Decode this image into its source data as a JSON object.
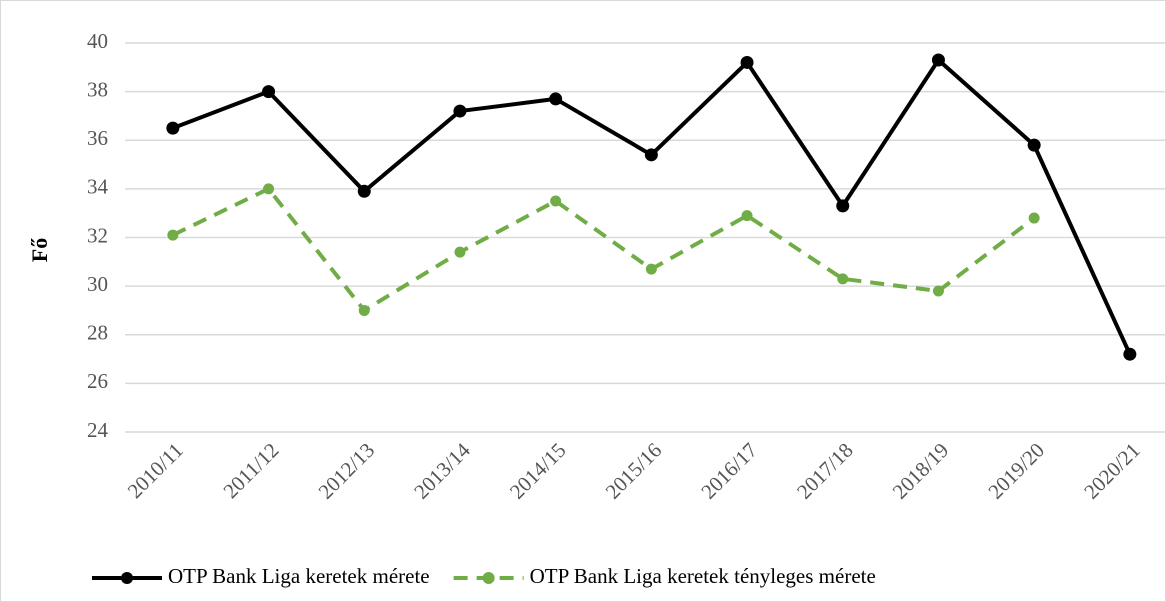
{
  "chart_data": {
    "type": "line",
    "y_label": "Fő",
    "categories": [
      "2010/11",
      "2011/12",
      "2012/13",
      "2013/14",
      "2014/15",
      "2015/16",
      "2016/17",
      "2017/18",
      "2018/19",
      "2019/20",
      "2020/21"
    ],
    "series": [
      {
        "name": "OTP Bank Liga keretek mérete",
        "color": "#000000",
        "dashed": false,
        "values": [
          36.5,
          38.0,
          33.9,
          37.2,
          37.7,
          35.4,
          39.2,
          33.3,
          39.3,
          35.8,
          27.2
        ]
      },
      {
        "name": "OTP Bank Liga keretek tényleges mérete",
        "color": "#70ad47",
        "dashed": true,
        "values": [
          32.1,
          34.0,
          29.0,
          31.4,
          33.5,
          30.7,
          32.9,
          30.3,
          29.8,
          32.8,
          null
        ]
      }
    ],
    "ylim": [
      24,
      40
    ],
    "yticks": [
      24,
      26,
      28,
      30,
      32,
      34,
      36,
      38,
      40
    ],
    "grid": true
  }
}
